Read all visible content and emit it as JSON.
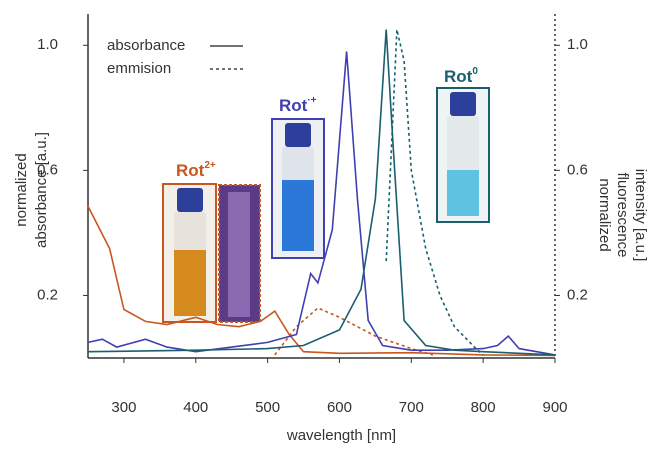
{
  "chart_data": {
    "type": "line",
    "xlabel": "wavelength [nm]",
    "ylabel": [
      "normalized",
      "absorbance [a.u.]"
    ],
    "y2label": [
      "normalized",
      "fluorescence",
      "intensity [a.u.]"
    ],
    "xlim": [
      250,
      900
    ],
    "xticks": [
      300,
      400,
      500,
      600,
      700,
      800,
      900
    ],
    "ylim": [
      0,
      1.1
    ],
    "yticks": [
      {
        "value": 1,
        "label": "1.0"
      },
      0.6,
      0.2
    ],
    "y2lim": [
      0,
      1.1
    ],
    "y2ticks": [
      {
        "value": 1,
        "label": "1.0"
      },
      0.6,
      0.2
    ],
    "legend": [
      {
        "label": "absorbance",
        "style": "solid"
      },
      {
        "label": "emmision",
        "style": "dashed"
      }
    ],
    "annotations": [
      {
        "text": "Rot",
        "sup": "2+",
        "color": "#c8561e"
      },
      {
        "text": "Rot",
        "sup": "·+",
        "color": "#4040b0"
      },
      {
        "text": "Rot",
        "sup": "0",
        "color": "#1a5f6e"
      }
    ],
    "series": [
      {
        "color": "#c8561e",
        "style": "solid",
        "x": [
          250,
          280,
          300,
          330,
          360,
          400,
          430,
          460,
          490,
          510,
          530,
          550,
          600,
          700,
          800,
          900
        ],
        "values": [
          0.485,
          0.35,
          0.155,
          0.117,
          0.107,
          0.13,
          0.107,
          0.1,
          0.117,
          0.15,
          0.075,
          0.02,
          0.015,
          0.017,
          0.01,
          0.008
        ]
      },
      {
        "color": "#c8561e",
        "style": "dashed",
        "axis": "y2",
        "x": [
          510,
          540,
          570,
          600,
          650,
          700,
          730
        ],
        "values": [
          0.01,
          0.1,
          0.16,
          0.13,
          0.07,
          0.03,
          0.01
        ]
      },
      {
        "color": "#4040b0",
        "style": "solid",
        "x": [
          250,
          270,
          290,
          330,
          360,
          400,
          450,
          500,
          540,
          560,
          570,
          590,
          610,
          625,
          640,
          660,
          700,
          750,
          800,
          820,
          835,
          850,
          900
        ],
        "values": [
          0.05,
          0.06,
          0.035,
          0.06,
          0.035,
          0.02,
          0.035,
          0.05,
          0.075,
          0.27,
          0.24,
          0.41,
          0.98,
          0.51,
          0.12,
          0.04,
          0.025,
          0.025,
          0.03,
          0.04,
          0.07,
          0.03,
          0.01
        ]
      },
      {
        "color": "#1a5f6e",
        "style": "solid",
        "x": [
          250,
          400,
          500,
          550,
          600,
          630,
          650,
          665,
          675,
          690,
          720,
          760,
          800,
          900
        ],
        "values": [
          0.02,
          0.025,
          0.03,
          0.04,
          0.09,
          0.22,
          0.51,
          1.05,
          0.67,
          0.12,
          0.04,
          0.025,
          0.02,
          0.01
        ]
      },
      {
        "color": "#1a5f6e",
        "style": "dashed",
        "axis": "y2",
        "x": [
          665,
          680,
          690,
          700,
          720,
          740,
          760,
          790,
          800
        ],
        "values": [
          0.31,
          1.05,
          0.95,
          0.6,
          0.35,
          0.2,
          0.1,
          0.03,
          0.01
        ]
      }
    ]
  }
}
